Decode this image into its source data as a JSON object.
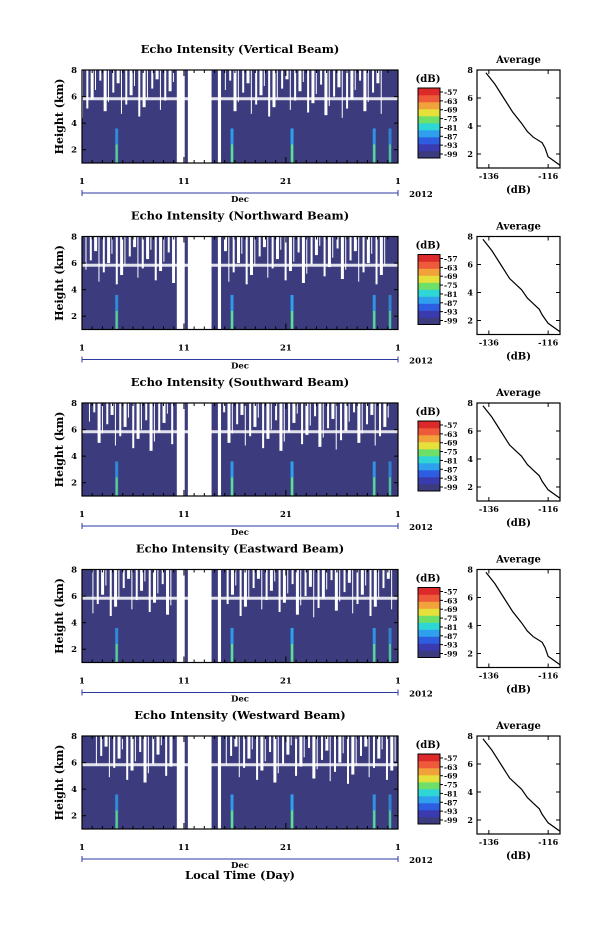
{
  "chart_data": {
    "type": "heatmap",
    "xlabel": "Local Time (Day)",
    "x_ticks": [
      "1",
      "11",
      "21",
      "1"
    ],
    "x_month": "Dec",
    "x_year": "2012",
    "ylabel": "Height (km)",
    "y_ticks": [
      2,
      4,
      6,
      8
    ],
    "ylim": [
      1,
      8
    ],
    "colorbar_label": "(dB)",
    "colorbar_ticks": [
      -57,
      -63,
      -69,
      -75,
      -81,
      -87,
      -93,
      -99
    ],
    "colorbar_colors": [
      "#3b3b7d",
      "#3b3bb0",
      "#2d5de0",
      "#2ea0ee",
      "#2fd6d6",
      "#6ee06a",
      "#e6e03a",
      "#f2a23a",
      "#ef5a3a",
      "#dc2a2a"
    ],
    "profile_title": "Average",
    "profile_xlabel": "(dB)",
    "profile_xticks": [
      -136,
      -116
    ],
    "profile_xlim": [
      -140,
      -112
    ],
    "panels": [
      {
        "title": "Echo Intensity (Vertical Beam)",
        "avg_profile": {
          "height": [
            1.2,
            1.8,
            2.4,
            2.8,
            3.2,
            3.6,
            4.2,
            5.0,
            6.0,
            7.0,
            7.8
          ],
          "db": [
            -112,
            -116,
            -117,
            -118,
            -121,
            -123,
            -125,
            -128,
            -131,
            -134,
            -137
          ]
        }
      },
      {
        "title": "Echo Intensity (Northward Beam)",
        "avg_profile": {
          "height": [
            1.2,
            1.8,
            2.4,
            2.8,
            3.2,
            3.6,
            4.2,
            5.0,
            6.0,
            7.0,
            7.8
          ],
          "db": [
            -112,
            -116,
            -118,
            -119,
            -121,
            -123,
            -125,
            -129,
            -132,
            -135,
            -138
          ]
        }
      },
      {
        "title": "Echo Intensity (Southward Beam)",
        "avg_profile": {
          "height": [
            1.2,
            1.8,
            2.4,
            2.8,
            3.2,
            3.6,
            4.2,
            5.0,
            6.0,
            7.0,
            7.8
          ],
          "db": [
            -112,
            -116,
            -118,
            -119,
            -121,
            -123,
            -125,
            -129,
            -132,
            -135,
            -138
          ]
        }
      },
      {
        "title": "Echo Intensity (Eastward Beam)",
        "avg_profile": {
          "height": [
            1.2,
            1.8,
            2.4,
            2.8,
            3.2,
            3.6,
            4.2,
            5.0,
            6.0,
            7.0,
            7.8
          ],
          "db": [
            -112,
            -116,
            -117,
            -118,
            -121,
            -123,
            -125,
            -128,
            -131,
            -134,
            -137
          ]
        }
      },
      {
        "title": "Echo Intensity (Westward Beam)",
        "avg_profile": {
          "height": [
            1.2,
            1.8,
            2.4,
            2.8,
            3.2,
            3.6,
            4.2,
            5.0,
            6.0,
            7.0,
            7.8
          ],
          "db": [
            -112,
            -116,
            -118,
            -119,
            -121,
            -123,
            -125,
            -129,
            -132,
            -135,
            -138
          ]
        }
      }
    ]
  }
}
